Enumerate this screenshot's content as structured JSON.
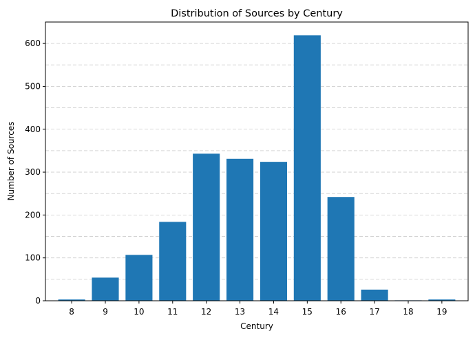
{
  "chart_data": {
    "type": "bar",
    "title": "Distribution of Sources by Century",
    "xlabel": "Century",
    "ylabel": "Number of Sources",
    "categories": [
      "8",
      "9",
      "10",
      "11",
      "12",
      "13",
      "14",
      "15",
      "16",
      "17",
      "18",
      "19"
    ],
    "values": [
      3,
      54,
      107,
      184,
      343,
      331,
      324,
      619,
      242,
      26,
      1,
      3
    ],
    "ylim": [
      0,
      650
    ],
    "yticks": [
      0,
      100,
      200,
      300,
      400,
      500,
      600
    ],
    "grid": "horizontal dashed, major and minor",
    "bar_color": "#1f77b4",
    "grid_color": "#cccccc"
  }
}
